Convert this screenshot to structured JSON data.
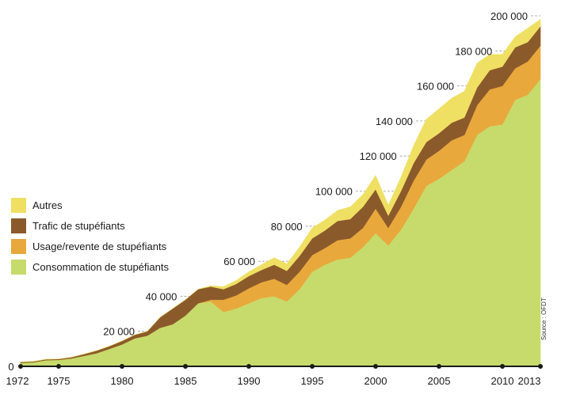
{
  "chart_data": {
    "type": "area",
    "stacked": true,
    "x": [
      1972,
      1973,
      1974,
      1975,
      1976,
      1977,
      1978,
      1979,
      1980,
      1981,
      1982,
      1983,
      1984,
      1985,
      1986,
      1987,
      1988,
      1989,
      1990,
      1991,
      1992,
      1993,
      1994,
      1995,
      1996,
      1997,
      1998,
      1999,
      2000,
      2001,
      2002,
      2003,
      2004,
      2005,
      2006,
      2007,
      2008,
      2009,
      2010,
      2011,
      2012,
      2013
    ],
    "x_ticks": [
      "1972",
      "1975",
      "1980",
      "1985",
      "1990",
      "1995",
      "2000",
      "2005",
      "2010",
      "2013"
    ],
    "y_ticks": [
      "0",
      "20 000",
      "40 000",
      "60 000",
      "80 000",
      "100 000",
      "120 000",
      "140 000",
      "160 000",
      "180 000",
      "200 000"
    ],
    "ylim": [
      0,
      200000
    ],
    "series": [
      {
        "name": "Consommation de stupéfiants",
        "color": "#c6db6c",
        "values": [
          2000,
          2300,
          3500,
          3700,
          4500,
          6000,
          7500,
          10000,
          12500,
          16000,
          17500,
          22000,
          24000,
          29000,
          36000,
          37000,
          31000,
          33000,
          36000,
          39000,
          40000,
          37000,
          44000,
          54000,
          58000,
          61000,
          62000,
          68000,
          76000,
          69000,
          78000,
          90000,
          103000,
          107000,
          112000,
          117000,
          132000,
          137000,
          138000,
          152000,
          155000,
          164000
        ]
      },
      {
        "name": "Usage/revente de stupéfiants",
        "color": "#e9a83c",
        "values": [
          0,
          0,
          0,
          0,
          0,
          0,
          0,
          0,
          0,
          0,
          0,
          0,
          0,
          0,
          0,
          1000,
          7000,
          7500,
          8500,
          9000,
          10000,
          9500,
          10000,
          9500,
          9500,
          11000,
          11000,
          11000,
          14000,
          10000,
          13000,
          16000,
          15000,
          16000,
          17000,
          15000,
          17000,
          21000,
          22000,
          18000,
          19000,
          19000
        ]
      },
      {
        "name": "Trafic de stupéfiants",
        "color": "#8b5a2b",
        "values": [
          500,
          500,
          500,
          500,
          700,
          1000,
          1500,
          1500,
          2000,
          2000,
          2500,
          6000,
          9000,
          9000,
          8000,
          7500,
          6000,
          6500,
          7000,
          7000,
          8000,
          8000,
          9000,
          9500,
          10000,
          11000,
          11000,
          12000,
          11000,
          7000,
          9000,
          10000,
          10000,
          10000,
          10000,
          10000,
          10000,
          11000,
          11000,
          12000,
          11000,
          11000
        ]
      },
      {
        "name": "Autres",
        "color": "#efe063",
        "values": [
          0,
          0,
          0,
          0,
          0,
          0,
          0,
          0,
          0,
          0,
          0,
          0,
          0,
          0,
          0,
          500,
          1500,
          2000,
          2500,
          3000,
          4000,
          4000,
          5000,
          6000,
          6000,
          6000,
          7000,
          7000,
          8000,
          6000,
          8000,
          10000,
          13000,
          14000,
          14000,
          15000,
          14000,
          9000,
          7000,
          6000,
          8000,
          4000
        ]
      }
    ]
  },
  "source": "Source : OFDT"
}
